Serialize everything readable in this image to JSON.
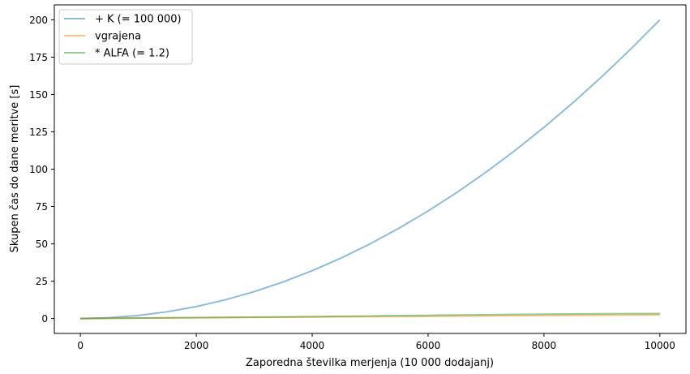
{
  "chart_data": {
    "type": "line",
    "title": "",
    "xlabel": "Zaporedna številka merjenja (10 000 dodajanj)",
    "ylabel": "Skupen čas do dane meritve [s]",
    "xlim": [
      -450,
      10450
    ],
    "ylim": [
      -10,
      210
    ],
    "x_ticks": [
      0,
      2000,
      4000,
      6000,
      8000,
      10000
    ],
    "y_ticks": [
      0,
      25,
      50,
      75,
      100,
      125,
      150,
      175,
      200
    ],
    "grid": false,
    "legend_position": "top-left",
    "series": [
      {
        "name": "+ K (= 100 000)",
        "color": "#1f77b4",
        "x": [
          0,
          500,
          1000,
          1500,
          2000,
          2500,
          3000,
          3500,
          4000,
          4500,
          5000,
          5500,
          6000,
          6500,
          7000,
          7500,
          8000,
          8500,
          9000,
          9500,
          10000
        ],
        "y": [
          0,
          0.5,
          2,
          4.5,
          8,
          12.5,
          18,
          24.5,
          32,
          40.5,
          50,
          60.5,
          72,
          84.5,
          98,
          112.5,
          128,
          144.5,
          162,
          180.5,
          200
        ]
      },
      {
        "name": "vgrajena",
        "color": "#ff7f0e",
        "x": [
          0,
          1000,
          2000,
          3000,
          4000,
          5000,
          6000,
          7000,
          8000,
          9000,
          10000
        ],
        "y": [
          0,
          0.25,
          0.5,
          0.75,
          1.0,
          1.25,
          1.5,
          1.75,
          2.0,
          2.25,
          2.5
        ]
      },
      {
        "name": "* ALFA (= 1.2)",
        "color": "#2ca02c",
        "x": [
          0,
          1000,
          2000,
          3000,
          4000,
          4350,
          5000,
          5250,
          6000,
          6250,
          7000,
          7500,
          8000,
          9000,
          10000
        ],
        "y": [
          0,
          0.3,
          0.6,
          0.9,
          1.2,
          1.4,
          1.6,
          1.9,
          2.1,
          2.3,
          2.5,
          2.8,
          2.9,
          3.2,
          3.3
        ]
      }
    ]
  }
}
